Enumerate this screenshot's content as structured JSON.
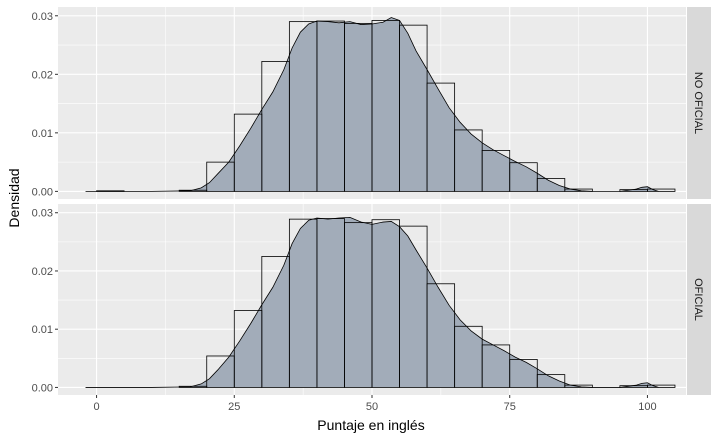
{
  "chart_data": {
    "type": "histogram-density",
    "xlabel": "Puntaje en inglés",
    "ylabel": "Densidad",
    "xlim": [
      -7,
      107
    ],
    "ylim": [
      -0.0013,
      0.0315
    ],
    "x_ticks": [
      0,
      25,
      50,
      75,
      100
    ],
    "x_tick_labels": [
      "0",
      "25",
      "50",
      "75",
      "100"
    ],
    "y_ticks": [
      0,
      0.01,
      0.02,
      0.03
    ],
    "y_tick_labels": [
      "0.00",
      "0.01",
      "0.02",
      "0.03"
    ],
    "grid": true,
    "colors": {
      "panel_bg": "#ebebeb",
      "grid_major": "#ffffff",
      "strip_bg": "#d9d9d9",
      "density_fill": "#a2acb9",
      "outline": "#000000"
    },
    "bin_width": 5,
    "panels": [
      {
        "strip_label": "NO OFICIAL",
        "bins": [
          {
            "x0": 0,
            "x1": 5,
            "value": 0.0001
          },
          {
            "x0": 5,
            "x1": 10,
            "value": 0
          },
          {
            "x0": 10,
            "x1": 15,
            "value": 0
          },
          {
            "x0": 15,
            "x1": 20,
            "value": 0.0002
          },
          {
            "x0": 20,
            "x1": 25,
            "value": 0.005
          },
          {
            "x0": 25,
            "x1": 30,
            "value": 0.0132
          },
          {
            "x0": 30,
            "x1": 35,
            "value": 0.0222
          },
          {
            "x0": 35,
            "x1": 40,
            "value": 0.029
          },
          {
            "x0": 40,
            "x1": 45,
            "value": 0.0291
          },
          {
            "x0": 45,
            "x1": 50,
            "value": 0.0287
          },
          {
            "x0": 50,
            "x1": 55,
            "value": 0.0292
          },
          {
            "x0": 55,
            "x1": 60,
            "value": 0.0284
          },
          {
            "x0": 60,
            "x1": 65,
            "value": 0.0185
          },
          {
            "x0": 65,
            "x1": 70,
            "value": 0.0105
          },
          {
            "x0": 70,
            "x1": 75,
            "value": 0.007
          },
          {
            "x0": 75,
            "x1": 80,
            "value": 0.0049
          },
          {
            "x0": 80,
            "x1": 85,
            "value": 0.0022
          },
          {
            "x0": 85,
            "x1": 90,
            "value": 0.0004
          },
          {
            "x0": 90,
            "x1": 95,
            "value": 0
          },
          {
            "x0": 95,
            "x1": 100,
            "value": 0.0003
          },
          {
            "x0": 100,
            "x1": 105,
            "value": 0.0004
          }
        ],
        "density": {
          "x": [
            -2,
            10,
            17,
            19,
            20.5,
            22,
            24,
            26,
            28,
            30,
            32,
            34,
            35.5,
            37,
            38.5,
            40,
            42,
            44,
            46,
            48,
            50,
            52,
            53.5,
            55,
            56.5,
            58,
            60,
            62,
            64,
            66,
            68,
            70,
            72,
            74,
            76,
            78,
            80,
            82,
            84,
            86,
            88,
            90,
            95,
            98,
            99,
            100,
            101,
            102
          ],
          "y": [
            0,
            0,
            0.0001,
            0.0006,
            0.0015,
            0.003,
            0.005,
            0.0078,
            0.0108,
            0.014,
            0.017,
            0.0208,
            0.0245,
            0.0272,
            0.0286,
            0.0291,
            0.029,
            0.0288,
            0.029,
            0.0285,
            0.0286,
            0.0289,
            0.0297,
            0.0292,
            0.027,
            0.024,
            0.0208,
            0.0175,
            0.0143,
            0.0118,
            0.0098,
            0.0083,
            0.0071,
            0.0061,
            0.0051,
            0.0042,
            0.0031,
            0.0019,
            0.001,
            0.0004,
            0.0001,
            0,
            0,
            0.0004,
            0.0007,
            0.0008,
            0.0003,
            0
          ]
        }
      },
      {
        "strip_label": "OFICIAL",
        "bins": [
          {
            "x0": 0,
            "x1": 5,
            "value": 0
          },
          {
            "x0": 5,
            "x1": 10,
            "value": 0
          },
          {
            "x0": 10,
            "x1": 15,
            "value": 0
          },
          {
            "x0": 15,
            "x1": 20,
            "value": 0.0002
          },
          {
            "x0": 20,
            "x1": 25,
            "value": 0.0054
          },
          {
            "x0": 25,
            "x1": 30,
            "value": 0.0132
          },
          {
            "x0": 30,
            "x1": 35,
            "value": 0.0225
          },
          {
            "x0": 35,
            "x1": 40,
            "value": 0.0289
          },
          {
            "x0": 40,
            "x1": 45,
            "value": 0.029
          },
          {
            "x0": 45,
            "x1": 50,
            "value": 0.0283
          },
          {
            "x0": 50,
            "x1": 55,
            "value": 0.0288
          },
          {
            "x0": 55,
            "x1": 60,
            "value": 0.0277
          },
          {
            "x0": 60,
            "x1": 65,
            "value": 0.0178
          },
          {
            "x0": 65,
            "x1": 70,
            "value": 0.0105
          },
          {
            "x0": 70,
            "x1": 75,
            "value": 0.0073
          },
          {
            "x0": 75,
            "x1": 80,
            "value": 0.0048
          },
          {
            "x0": 80,
            "x1": 85,
            "value": 0.0022
          },
          {
            "x0": 85,
            "x1": 90,
            "value": 0.0004
          },
          {
            "x0": 90,
            "x1": 95,
            "value": 0
          },
          {
            "x0": 95,
            "x1": 100,
            "value": 0.0003
          },
          {
            "x0": 100,
            "x1": 105,
            "value": 0.0004
          }
        ],
        "density": {
          "x": [
            -2,
            10,
            17,
            19,
            20.5,
            22,
            24,
            26,
            28,
            30,
            32,
            34,
            35.5,
            37,
            38.5,
            40,
            42,
            44,
            46,
            48,
            50,
            52,
            53.5,
            55,
            56.5,
            58,
            60,
            62,
            64,
            66,
            68,
            70,
            72,
            74,
            76,
            78,
            80,
            82,
            84,
            86,
            88,
            90,
            95,
            98,
            99,
            100,
            101,
            102
          ],
          "y": [
            0,
            0,
            0.0001,
            0.0006,
            0.0015,
            0.003,
            0.0052,
            0.008,
            0.011,
            0.0142,
            0.0172,
            0.021,
            0.0247,
            0.0273,
            0.0287,
            0.0291,
            0.0289,
            0.0291,
            0.0292,
            0.0284,
            0.028,
            0.0284,
            0.0285,
            0.0276,
            0.026,
            0.0236,
            0.0205,
            0.0172,
            0.0141,
            0.0116,
            0.0097,
            0.0083,
            0.0073,
            0.0063,
            0.0052,
            0.0043,
            0.0032,
            0.002,
            0.0011,
            0.0004,
            0.0001,
            0,
            0,
            0.0004,
            0.0007,
            0.0008,
            0.0003,
            0
          ]
        }
      }
    ]
  }
}
